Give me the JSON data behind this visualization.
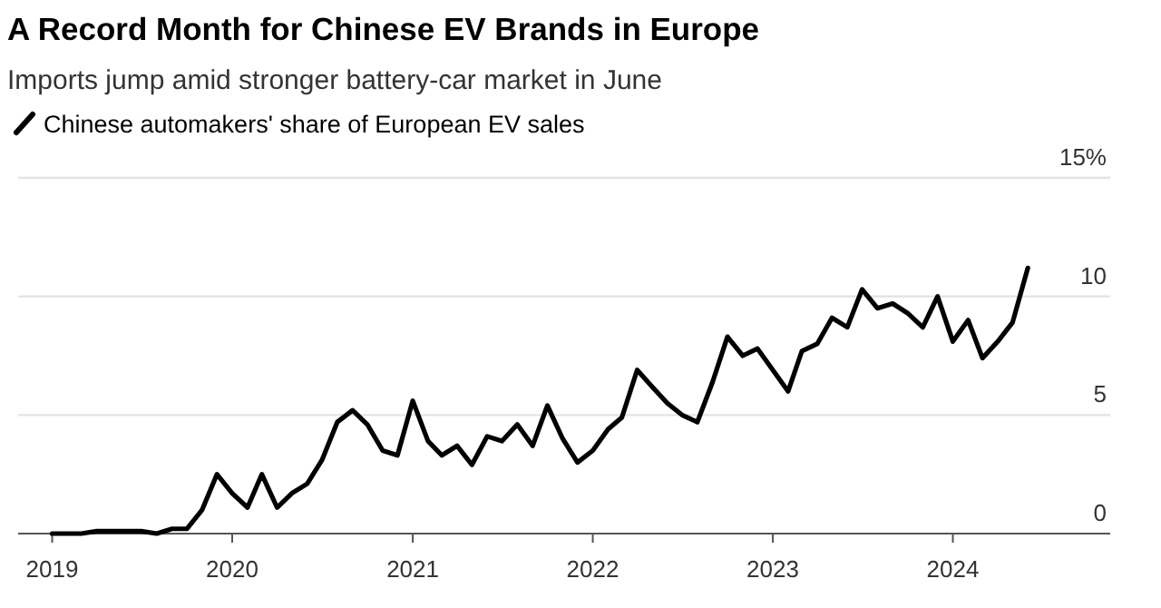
{
  "chart_data": {
    "type": "line",
    "title": "A Record Month for Chinese EV Brands in Europe",
    "subtitle": "Imports jump amid stronger battery-car market in June",
    "x": [
      "2019-01",
      "2019-02",
      "2019-03",
      "2019-04",
      "2019-05",
      "2019-06",
      "2019-07",
      "2019-08",
      "2019-09",
      "2019-10",
      "2019-11",
      "2019-12",
      "2020-01",
      "2020-02",
      "2020-03",
      "2020-04",
      "2020-05",
      "2020-06",
      "2020-07",
      "2020-08",
      "2020-09",
      "2020-10",
      "2020-11",
      "2020-12",
      "2021-01",
      "2021-02",
      "2021-03",
      "2021-04",
      "2021-05",
      "2021-06",
      "2021-07",
      "2021-08",
      "2021-09",
      "2021-10",
      "2021-11",
      "2021-12",
      "2022-01",
      "2022-02",
      "2022-03",
      "2022-04",
      "2022-05",
      "2022-06",
      "2022-07",
      "2022-08",
      "2022-09",
      "2022-10",
      "2022-11",
      "2022-12",
      "2023-01",
      "2023-02",
      "2023-03",
      "2023-04",
      "2023-05",
      "2023-06",
      "2023-07",
      "2023-08",
      "2023-09",
      "2023-10",
      "2023-11",
      "2023-12",
      "2024-01",
      "2024-02",
      "2024-03",
      "2024-04",
      "2024-05",
      "2024-06"
    ],
    "series": [
      {
        "name": "Chinese automakers' share of European EV sales",
        "color": "#000000",
        "values": [
          0,
          0,
          0,
          0.1,
          0.1,
          0.1,
          0.1,
          0,
          0.2,
          0.2,
          1,
          2.5,
          1.7,
          1.1,
          2.5,
          1.1,
          1.7,
          2.1,
          3.1,
          4.7,
          5.2,
          4.6,
          3.5,
          3.3,
          5.6,
          3.9,
          3.3,
          3.7,
          2.9,
          4.1,
          3.9,
          4.6,
          3.7,
          5.4,
          4,
          3,
          3.5,
          4.4,
          4.9,
          6.9,
          6.2,
          5.5,
          5,
          4.7,
          6.4,
          8.3,
          7.5,
          7.8,
          6.9,
          6,
          7.7,
          8,
          9.1,
          8.7,
          10.3,
          9.5,
          9.7,
          9.3,
          8.7,
          10,
          8.1,
          9,
          7.4,
          8.1,
          8.9,
          11.2
        ]
      }
    ],
    "xlim": [
      "2018-10-24",
      "2024-11-15"
    ],
    "xticks": [
      {
        "value": "2019-01-01",
        "label": "2019"
      },
      {
        "value": "2020-01-01",
        "label": "2020"
      },
      {
        "value": "2021-01-01",
        "label": "2021"
      },
      {
        "value": "2022-01-01",
        "label": "2022"
      },
      {
        "value": "2023-01-01",
        "label": "2023"
      },
      {
        "value": "2024-01-01",
        "label": "2024"
      }
    ],
    "ylim": [
      0,
      15
    ],
    "yticks": [
      0,
      5,
      10,
      {
        "value": 15,
        "label": "15%"
      }
    ],
    "grid": "y",
    "legend": "top left",
    "line_style": "solid"
  }
}
